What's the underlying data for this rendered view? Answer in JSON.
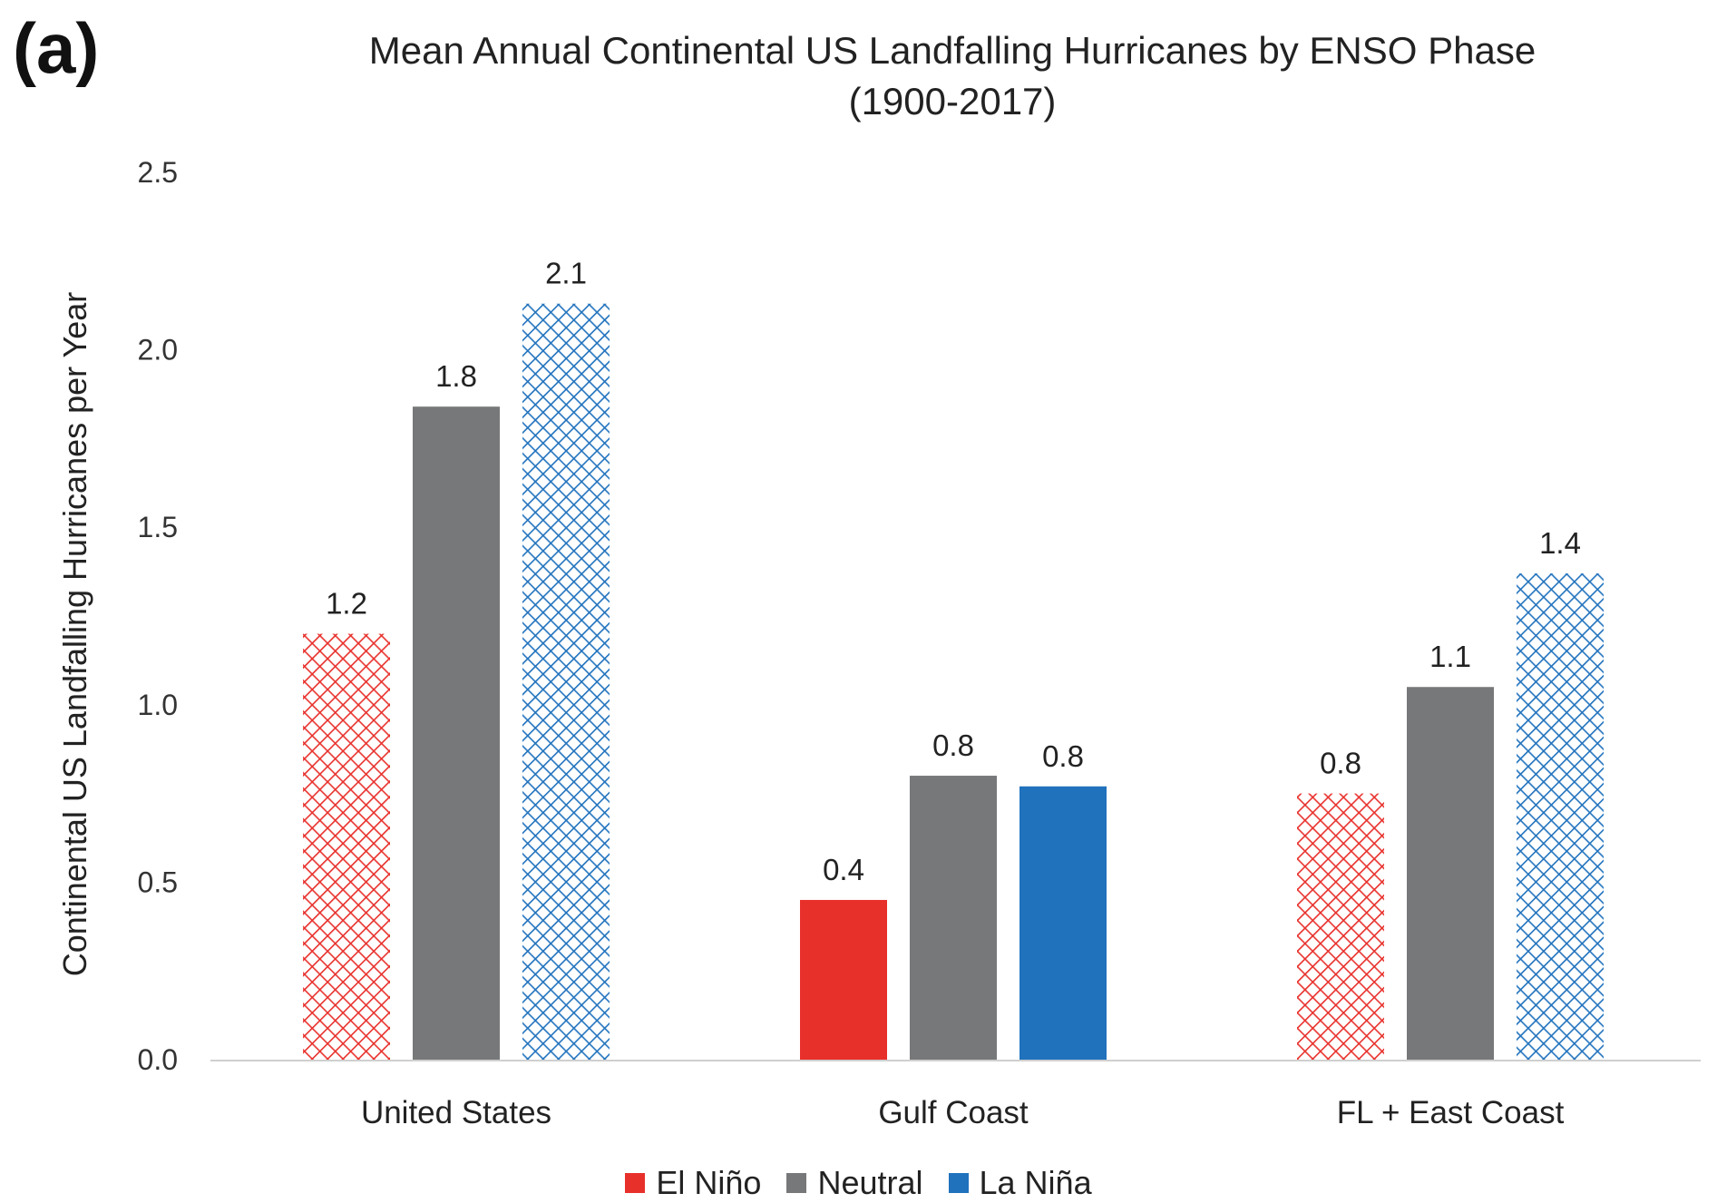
{
  "panel_label": "(a)",
  "colors": {
    "el_nino": "#e8302b",
    "neutral": "#777879",
    "la_nina": "#2072bd",
    "axis": "#cfcfcf"
  },
  "chart_data": {
    "type": "bar",
    "title": "Mean Annual Continental US Landfalling Hurricanes by ENSO Phase",
    "subtitle": "(1900-2017)",
    "xlabel": "",
    "ylabel": "Continental US Landfalling Hurricanes per Year",
    "ylim": [
      0,
      2.5
    ],
    "yticks": [
      "0.0",
      "0.5",
      "1.0",
      "1.5",
      "2.0",
      "2.5"
    ],
    "grid": false,
    "legend_position": "bottom",
    "categories": [
      "United States",
      "Gulf Coast",
      "FL + East Coast"
    ],
    "series": [
      {
        "name": "El Niño",
        "values": [
          1.2,
          0.45,
          0.75
        ],
        "labels": [
          "1.2",
          "0.4",
          "0.8"
        ],
        "hatched": [
          true,
          false,
          true
        ]
      },
      {
        "name": "Neutral",
        "values": [
          1.84,
          0.8,
          1.05
        ],
        "labels": [
          "1.8",
          "0.8",
          "1.1"
        ],
        "hatched": [
          false,
          false,
          false
        ]
      },
      {
        "name": "La Niña",
        "values": [
          2.13,
          0.77,
          1.37
        ],
        "labels": [
          "2.1",
          "0.8",
          "1.4"
        ],
        "hatched": [
          true,
          false,
          true
        ]
      }
    ]
  }
}
